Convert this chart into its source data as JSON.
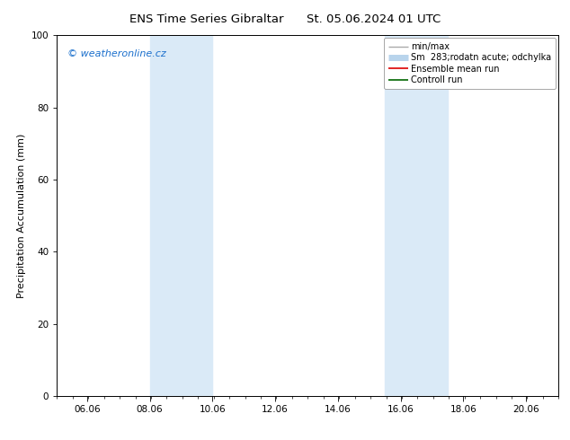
{
  "title_left": "ENS Time Series Gibraltar",
  "title_right": "St. 05.06.2024 01 UTC",
  "ylabel": "Precipitation Accumulation (mm)",
  "ylim": [
    0,
    100
  ],
  "yticks": [
    0,
    20,
    40,
    60,
    80,
    100
  ],
  "x_min": 5.041666,
  "x_max": 21.041666,
  "xtick_labels": [
    "06.06",
    "08.06",
    "10.06",
    "12.06",
    "14.06",
    "16.06",
    "18.06",
    "20.06"
  ],
  "xtick_positions_day": [
    6,
    8,
    10,
    12,
    14,
    16,
    18,
    20
  ],
  "shaded_bands": [
    {
      "xstart_day": 8.0,
      "xend_day": 10.0
    },
    {
      "xstart_day": 15.5,
      "xend_day": 17.5
    }
  ],
  "shade_color": "#daeaf7",
  "watermark_text": "© weatheronline.cz",
  "watermark_color": "#1a6fcc",
  "legend_entries": [
    {
      "label": "min/max",
      "color": "#aaaaaa",
      "lw": 1.0
    },
    {
      "label": "Sm  283;rodatn acute; odchylka",
      "color": "#b8d4ec",
      "lw": 5.0
    },
    {
      "label": "Ensemble mean run",
      "color": "#dd0000",
      "lw": 1.2
    },
    {
      "label": "Controll run",
      "color": "#006600",
      "lw": 1.2
    }
  ],
  "bg_color": "#ffffff",
  "plot_bg_color": "#ffffff",
  "title_fontsize": 9.5,
  "tick_fontsize": 7.5,
  "ylabel_fontsize": 8,
  "watermark_fontsize": 8,
  "legend_fontsize": 7
}
